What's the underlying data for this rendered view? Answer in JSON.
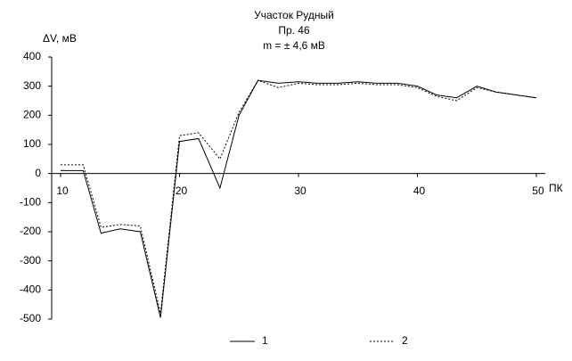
{
  "chart_data": {
    "type": "line",
    "title": "Участок Рудный",
    "subtitle": "Пр. 46",
    "annotation": "m = ± 4,6 мВ",
    "y_label": "ΔV, мВ",
    "x_label": "ПК",
    "x": [
      10,
      11.9,
      13.4,
      15,
      16.7,
      18.4,
      20,
      21.6,
      23.4,
      25,
      26.6,
      28.3,
      30,
      31.6,
      33.3,
      35,
      36.6,
      38.3,
      40,
      41.6,
      43.3,
      45,
      46.6,
      48.3,
      50
    ],
    "series": [
      {
        "name": "1",
        "color": "#000000",
        "values": [
          10,
          10,
          -205,
          -190,
          -200,
          -495,
          110,
          120,
          -50,
          200,
          320,
          310,
          315,
          310,
          310,
          315,
          310,
          310,
          300,
          270,
          260,
          300,
          280,
          270,
          260
        ]
      },
      {
        "name": "2",
        "color": "#000000",
        "values": [
          30,
          30,
          -185,
          -175,
          -180,
          -480,
          130,
          140,
          50,
          210,
          320,
          295,
          310,
          305,
          305,
          310,
          305,
          305,
          295,
          265,
          250,
          295,
          280,
          270,
          260
        ]
      }
    ],
    "xlim": [
      9.25,
      50.75
    ],
    "xticks": [
      10,
      20,
      30,
      40,
      50
    ],
    "ylim": [
      -500,
      400
    ],
    "yticks": [
      400,
      300,
      200,
      100,
      0,
      -100,
      -200,
      -300,
      -400,
      -500
    ]
  }
}
